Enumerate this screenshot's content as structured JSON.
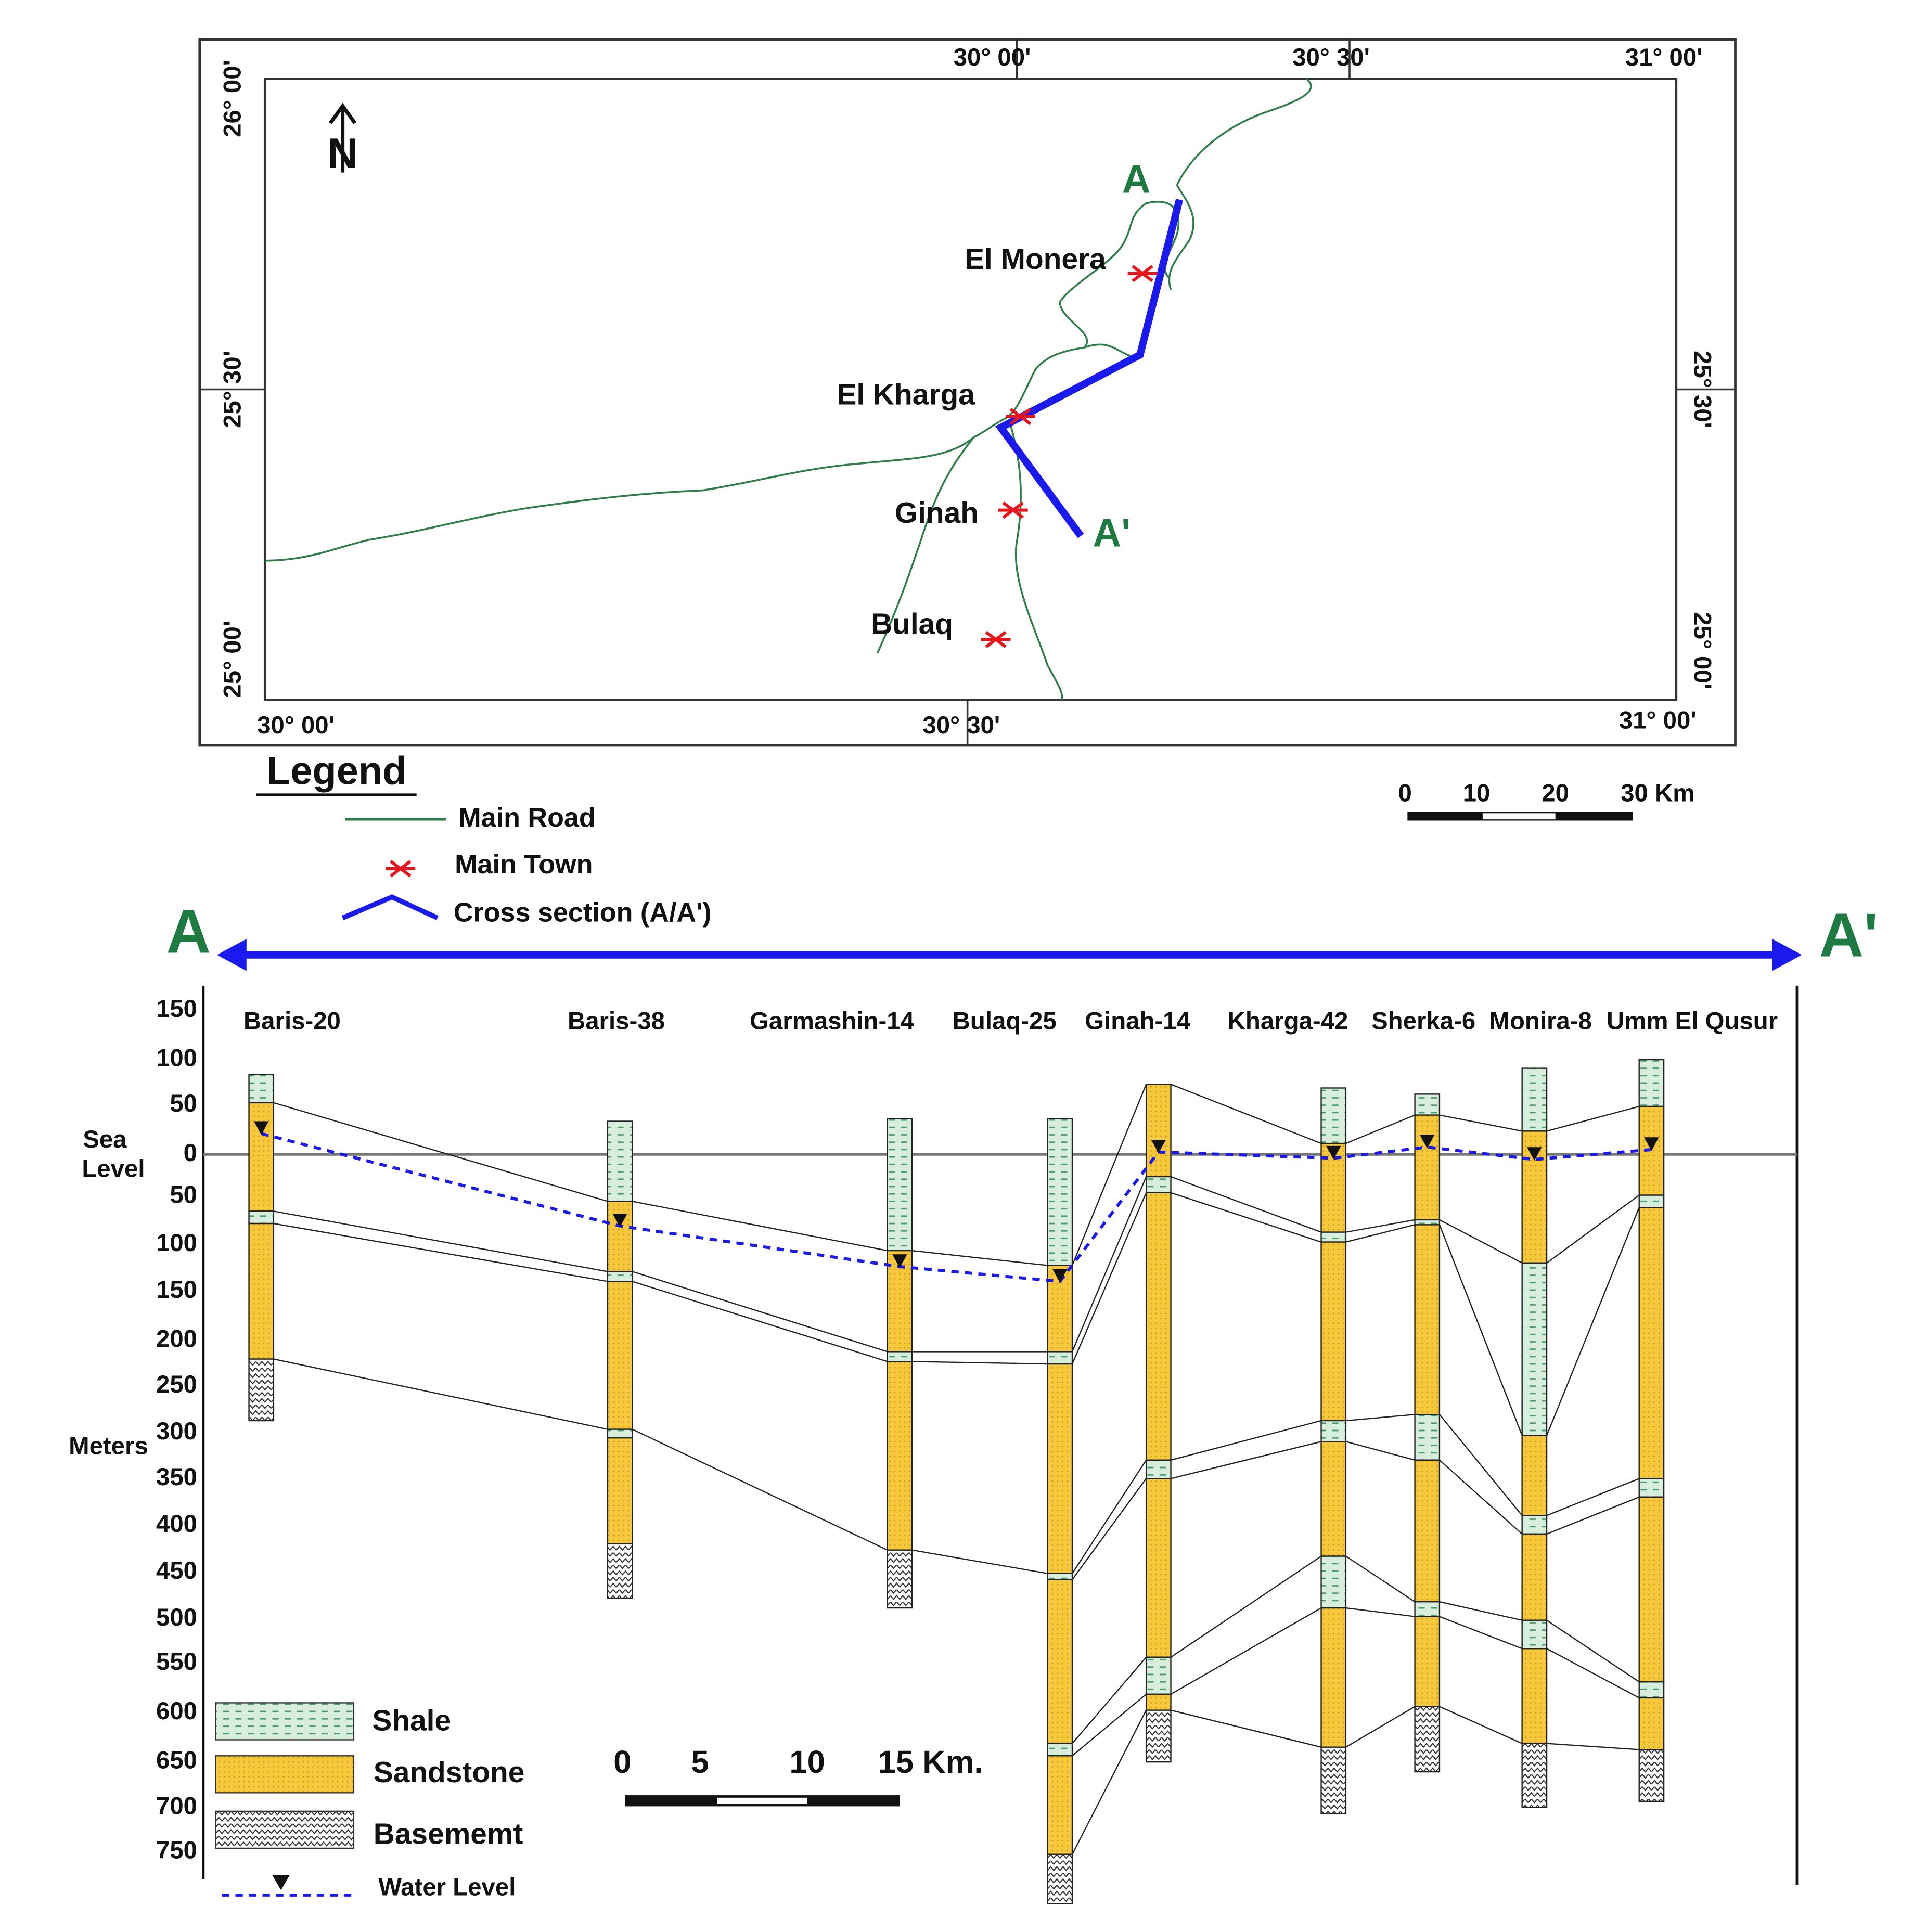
{
  "map": {
    "top_labels": [
      "30° 00'",
      "30° 30'",
      "31° 00'"
    ],
    "bottom_labels": [
      "30° 00'",
      "30° 30'",
      "31° 00'"
    ],
    "left_labels": [
      "26° 00'",
      "25° 30'",
      "25° 00'"
    ],
    "right_labels": [
      "25° 30'",
      "25° 00'"
    ],
    "north": "N",
    "point_a": "A",
    "point_a_prime": "A'",
    "towns": [
      "El Monera",
      "El Kharga",
      "Ginah",
      "Bulaq"
    ]
  },
  "legend": {
    "title": "Legend",
    "items": [
      "Main Road",
      "Main Town",
      "Cross section (A/A')"
    ],
    "scale": [
      "0",
      "10",
      "20",
      "30 Km"
    ]
  },
  "section": {
    "start": "A",
    "end": "A'",
    "depth_labels": [
      "150",
      "100",
      "50",
      "0",
      "50",
      "100",
      "150",
      "200",
      "250",
      "300",
      "350",
      "400",
      "450",
      "500",
      "550",
      "600",
      "650",
      "700",
      "750"
    ],
    "sea_level": [
      "Sea",
      "Level"
    ],
    "axis_label": "Meters",
    "wells": [
      "Baris-20",
      "Baris-38",
      "Garmashin-14",
      "Bulaq-25",
      "Ginah-14",
      "Kharga-42",
      "Sherka-6",
      "Monira-8",
      "Umm El Qusur"
    ],
    "legend": [
      "Shale",
      "Sandstone",
      "Basememt",
      "Water Level"
    ],
    "scale": [
      "0",
      "5",
      "10",
      "15 Km."
    ]
  }
}
